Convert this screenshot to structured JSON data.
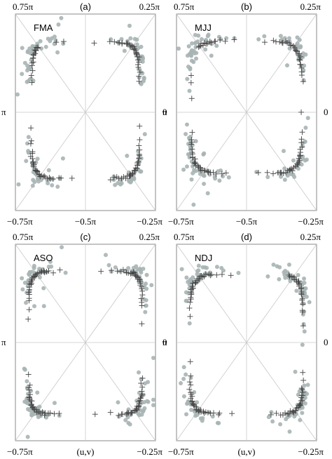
{
  "chart_data": [
    {
      "type": "scatter",
      "panel": "(a)",
      "season": "FMA",
      "corner_labels": {
        "top_left": "0.75π",
        "top_right": "0.25π",
        "bottom_left": "−0.75π",
        "bottom_center": "−0.5π",
        "bottom_right": "−0.25π",
        "left": "π",
        "right": "0"
      },
      "bottom_label": "",
      "grid": "radial-diagonals"
    },
    {
      "type": "scatter",
      "panel": "(b)",
      "season": "MJJ",
      "corner_labels": {
        "top_left": "0.75π",
        "top_right": "0.25π",
        "bottom_left": "−0.75π",
        "bottom_center": "−0.5π",
        "bottom_right": "−0.25π",
        "left": "π",
        "right": "0"
      },
      "bottom_label": "",
      "grid": "radial-diagonals"
    },
    {
      "type": "scatter",
      "panel": "(c)",
      "season": "ASO",
      "corner_labels": {
        "top_left": "0.75π",
        "top_right": "0.25π",
        "bottom_left": "−0.75π",
        "bottom_center": "(u,v)",
        "bottom_right": "−0.25π",
        "left": "π",
        "right": "0"
      },
      "bottom_label": "(u,v)",
      "grid": "radial-diagonals"
    },
    {
      "type": "scatter",
      "panel": "(d)",
      "season": "NDJ",
      "corner_labels": {
        "top_left": "0.75π",
        "top_right": "0.25π",
        "bottom_left": "−0.75π",
        "bottom_center": "(u,v)",
        "bottom_right": "−0.25π",
        "left": "π",
        "right": "0"
      },
      "bottom_label": "(u,v)",
      "grid": "radial-diagonals"
    }
  ]
}
